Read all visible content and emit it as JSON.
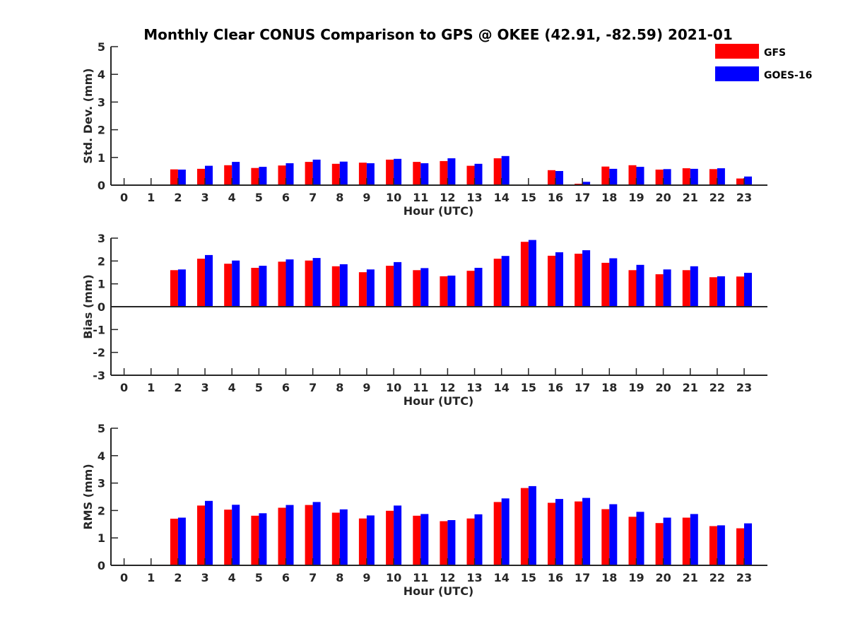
{
  "title": "Monthly Clear CONUS Comparison to GPS @ OKEE (42.91, -82.59) 2021-01",
  "legend": [
    {
      "label": "GFS",
      "color": "#ff0000"
    },
    {
      "label": "GOES-16",
      "color": "#0000ff"
    }
  ],
  "chart_data": [
    {
      "type": "bar",
      "title": "Monthly Clear CONUS Comparison to GPS @ OKEE (42.91, -82.59) 2021-01",
      "xlabel": "Hour (UTC)",
      "ylabel": "Std. Dev. (mm)",
      "ylim": [
        0,
        5
      ],
      "yticks": [
        "0",
        "1",
        "2",
        "3",
        "4",
        "5"
      ],
      "categories": [
        "0",
        "1",
        "2",
        "3",
        "4",
        "5",
        "6",
        "7",
        "8",
        "9",
        "10",
        "11",
        "12",
        "13",
        "14",
        "15",
        "16",
        "17",
        "18",
        "19",
        "20",
        "21",
        "22",
        "23"
      ],
      "series": [
        {
          "name": "GFS",
          "color": "#ff0000",
          "values": [
            null,
            null,
            0.57,
            0.59,
            0.72,
            0.62,
            0.71,
            0.84,
            0.77,
            0.81,
            0.92,
            0.84,
            0.87,
            0.7,
            0.97,
            null,
            0.54,
            0.05,
            0.67,
            0.72,
            0.56,
            0.61,
            0.58,
            0.24
          ]
        },
        {
          "name": "GOES-16",
          "color": "#0000ff",
          "values": [
            null,
            null,
            0.56,
            0.7,
            0.84,
            0.66,
            0.79,
            0.92,
            0.85,
            0.79,
            0.95,
            0.79,
            0.97,
            0.77,
            1.05,
            null,
            0.51,
            0.12,
            0.59,
            0.66,
            0.58,
            0.59,
            0.61,
            0.31
          ]
        }
      ],
      "legend_position": "top-right",
      "grid": false
    },
    {
      "type": "bar",
      "xlabel": "Hour (UTC)",
      "ylabel": "Bias (mm)",
      "ylim": [
        -3,
        3
      ],
      "yticks": [
        "-3",
        "-2",
        "-1",
        "0",
        "1",
        "2",
        "3"
      ],
      "categories": [
        "0",
        "1",
        "2",
        "3",
        "4",
        "5",
        "6",
        "7",
        "8",
        "9",
        "10",
        "11",
        "12",
        "13",
        "14",
        "15",
        "16",
        "17",
        "18",
        "19",
        "20",
        "21",
        "22",
        "23"
      ],
      "series": [
        {
          "name": "GFS",
          "color": "#ff0000",
          "values": [
            null,
            null,
            1.6,
            2.1,
            1.88,
            1.7,
            1.97,
            2.02,
            1.77,
            1.51,
            1.79,
            1.6,
            1.33,
            1.57,
            2.1,
            2.84,
            2.23,
            2.32,
            1.92,
            1.6,
            1.42,
            1.6,
            1.29,
            1.32
          ]
        },
        {
          "name": "GOES-16",
          "color": "#0000ff",
          "values": [
            null,
            null,
            1.63,
            2.26,
            2.02,
            1.79,
            2.07,
            2.13,
            1.86,
            1.63,
            1.95,
            1.69,
            1.36,
            1.7,
            2.22,
            2.92,
            2.38,
            2.47,
            2.12,
            1.83,
            1.63,
            1.77,
            1.33,
            1.48
          ]
        }
      ],
      "grid": false
    },
    {
      "type": "bar",
      "xlabel": "Hour (UTC)",
      "ylabel": "RMS (mm)",
      "ylim": [
        0,
        5
      ],
      "yticks": [
        "0",
        "1",
        "2",
        "3",
        "4",
        "5"
      ],
      "categories": [
        "0",
        "1",
        "2",
        "3",
        "4",
        "5",
        "6",
        "7",
        "8",
        "9",
        "10",
        "11",
        "12",
        "13",
        "14",
        "15",
        "16",
        "17",
        "18",
        "19",
        "20",
        "21",
        "22",
        "23"
      ],
      "series": [
        {
          "name": "GFS",
          "color": "#ff0000",
          "values": [
            null,
            null,
            1.7,
            2.18,
            2.03,
            1.81,
            2.1,
            2.2,
            1.92,
            1.71,
            1.99,
            1.81,
            1.61,
            1.71,
            2.31,
            2.82,
            2.28,
            2.33,
            2.05,
            1.77,
            1.54,
            1.74,
            1.43,
            1.35
          ]
        },
        {
          "name": "GOES-16",
          "color": "#0000ff",
          "values": [
            null,
            null,
            1.74,
            2.35,
            2.21,
            1.9,
            2.2,
            2.31,
            2.04,
            1.82,
            2.18,
            1.87,
            1.65,
            1.86,
            2.44,
            2.89,
            2.42,
            2.46,
            2.23,
            1.95,
            1.74,
            1.87,
            1.46,
            1.53
          ]
        }
      ],
      "grid": false
    }
  ]
}
